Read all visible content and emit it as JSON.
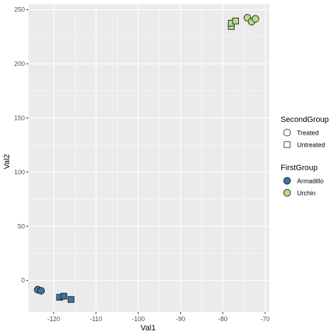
{
  "chart_data": {
    "type": "scatter",
    "xlabel": "Val1",
    "ylabel": "Val2",
    "xlim": [
      -126,
      -69
    ],
    "ylim": [
      -29,
      255
    ],
    "xticks": [
      -120,
      -110,
      -100,
      -90,
      -80,
      -70
    ],
    "yticks": [
      0,
      50,
      100,
      150,
      200,
      250
    ],
    "grid": true,
    "panel_background": "#ebebeb",
    "legends": [
      {
        "title": "SecondGroup",
        "kind": "shape",
        "entries": [
          {
            "label": "Treated",
            "shape": "circle"
          },
          {
            "label": "Untreated",
            "shape": "square"
          }
        ]
      },
      {
        "title": "FirstGroup",
        "kind": "fill",
        "entries": [
          {
            "label": "Armadillo",
            "color": "#3a75a8"
          },
          {
            "label": "Urchin",
            "color": "#b2df8a"
          }
        ]
      }
    ],
    "points": [
      {
        "x": -123.8,
        "y": -8.5,
        "first": "Armadillo",
        "second": "Treated"
      },
      {
        "x": -123.0,
        "y": -9.5,
        "first": "Armadillo",
        "second": "Treated"
      },
      {
        "x": -118.6,
        "y": -15.5,
        "first": "Armadillo",
        "second": "Untreated"
      },
      {
        "x": -117.6,
        "y": -14.5,
        "first": "Armadillo",
        "second": "Untreated"
      },
      {
        "x": -115.9,
        "y": -17.5,
        "first": "Armadillo",
        "second": "Untreated"
      },
      {
        "x": -78.0,
        "y": 234.5,
        "first": "Urchin",
        "second": "Untreated"
      },
      {
        "x": -78.0,
        "y": 237.5,
        "first": "Urchin",
        "second": "Untreated"
      },
      {
        "x": -77.0,
        "y": 239.5,
        "first": "Urchin",
        "second": "Untreated"
      },
      {
        "x": -74.2,
        "y": 242.5,
        "first": "Urchin",
        "second": "Treated"
      },
      {
        "x": -73.2,
        "y": 239.0,
        "first": "Urchin",
        "second": "Treated"
      },
      {
        "x": -72.3,
        "y": 241.5,
        "first": "Urchin",
        "second": "Treated"
      }
    ]
  }
}
